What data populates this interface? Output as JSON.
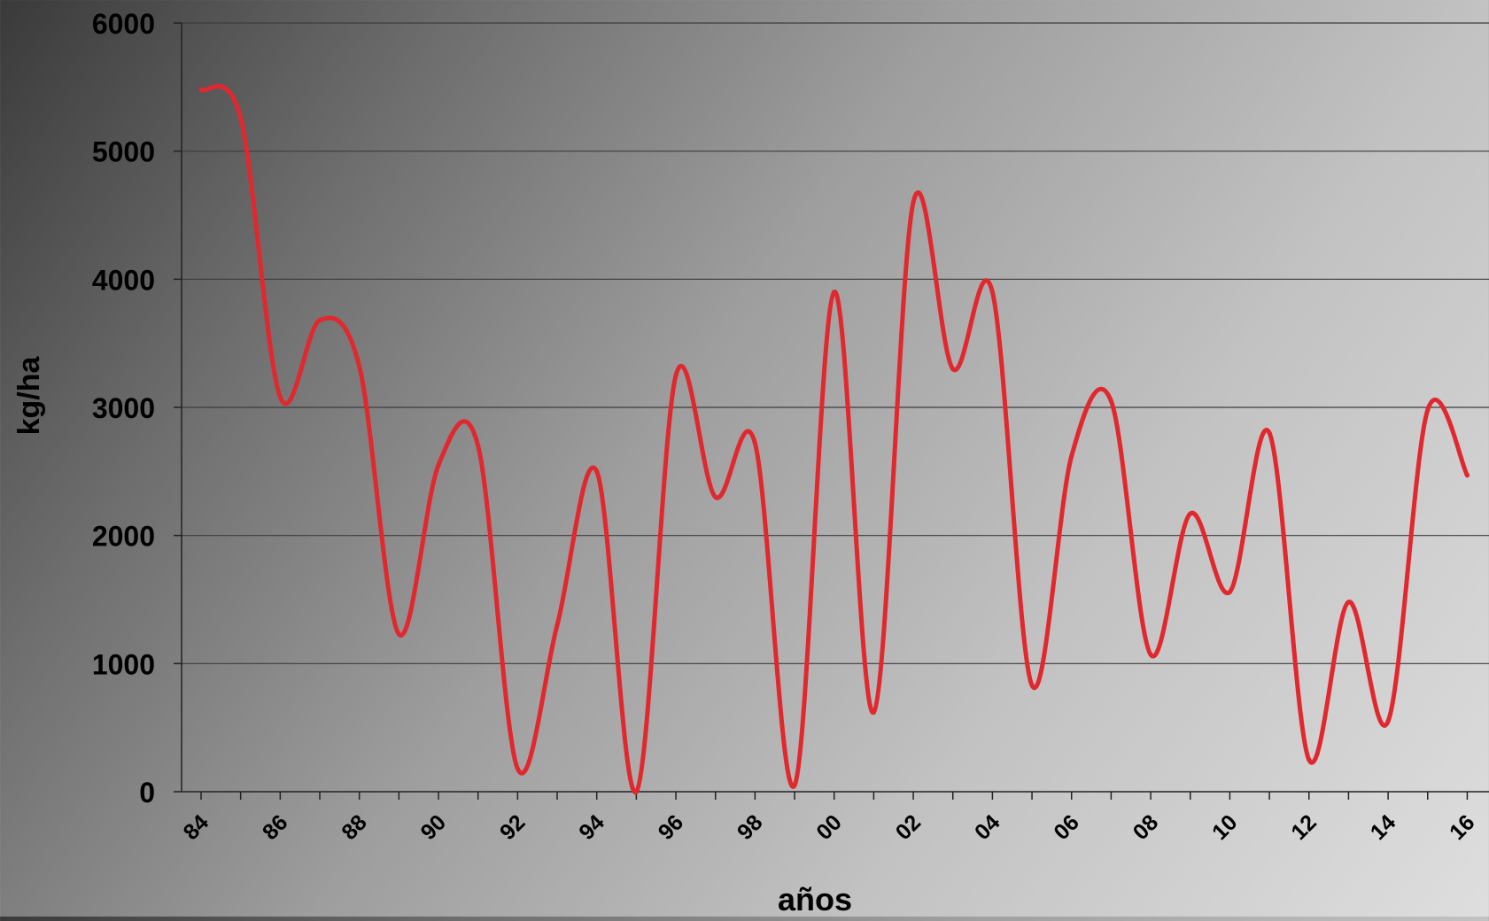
{
  "chart_data": {
    "type": "line",
    "xlabel": "años",
    "ylabel": "kg/ha",
    "ylim": [
      0,
      6000
    ],
    "yticks": [
      0,
      1000,
      2000,
      3000,
      4000,
      5000,
      6000
    ],
    "xticks": [
      "84",
      "86",
      "88",
      "90",
      "92",
      "94",
      "96",
      "98",
      "00",
      "02",
      "04",
      "06",
      "08",
      "10",
      "12",
      "14",
      "16"
    ],
    "grid": true,
    "legend": "none",
    "line_color": "#e0282e",
    "series": [
      {
        "x": [
          1984,
          1985,
          1986,
          1987,
          1988,
          1989,
          1990,
          1991,
          1992,
          1993,
          1994,
          1995,
          1996,
          1997,
          1998,
          1999,
          2000,
          2001,
          2002,
          2003,
          2004,
          2005,
          2006,
          2007,
          2008,
          2009,
          2010,
          2011,
          2012,
          2013,
          2014,
          2015,
          2016
        ],
        "values": [
          5480,
          5260,
          3080,
          3680,
          3320,
          1230,
          2550,
          2700,
          180,
          1300,
          2500,
          0,
          3250,
          2300,
          2720,
          50,
          3900,
          620,
          4600,
          3300,
          3900,
          830,
          2620,
          3050,
          1070,
          2170,
          1560,
          2800,
          250,
          1480,
          550,
          2980,
          2470
        ]
      }
    ]
  }
}
